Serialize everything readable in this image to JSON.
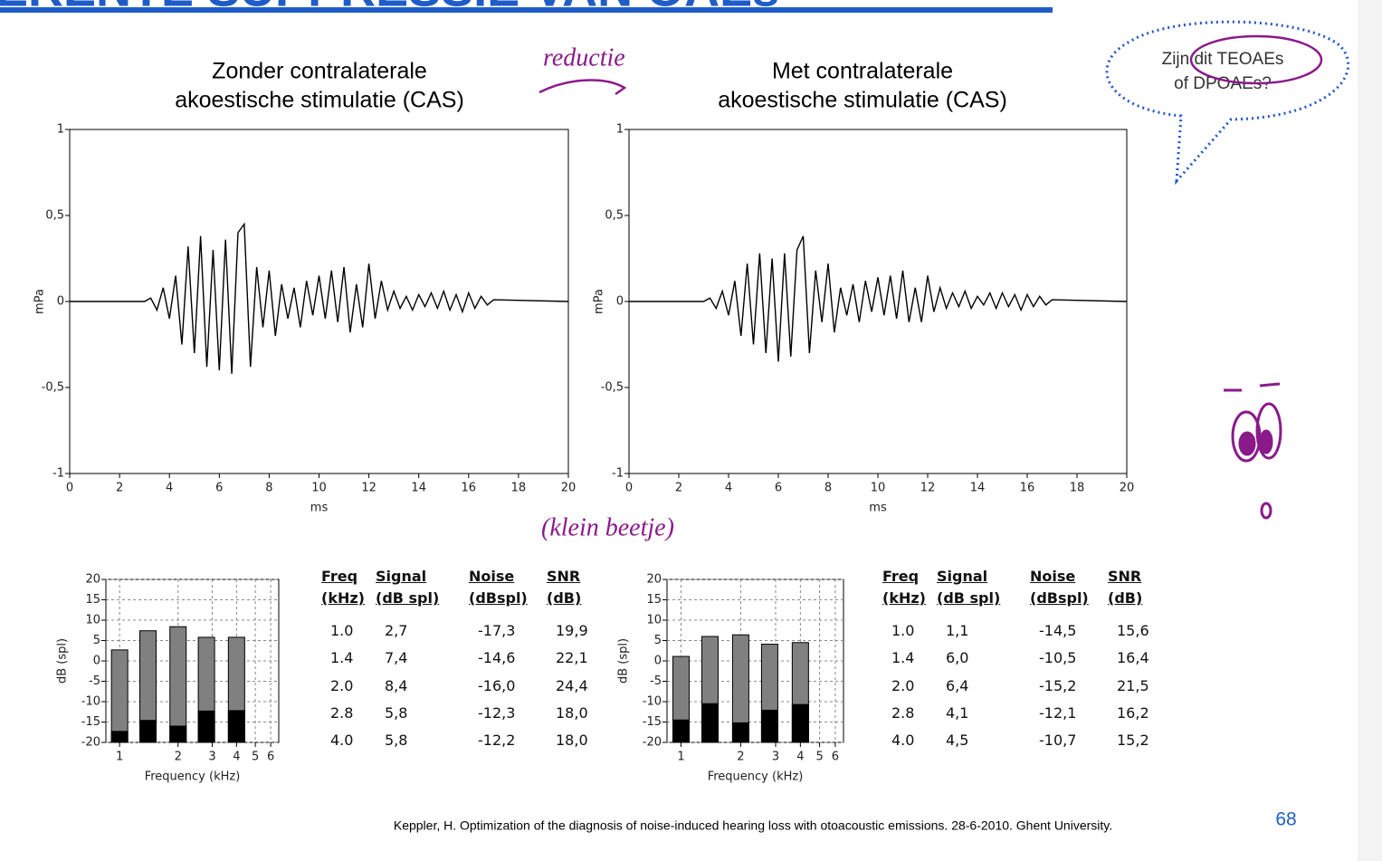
{
  "header": {
    "title": "ERENTE SUPPRESSIE VAN OAEs"
  },
  "chart_data": [
    {
      "type": "line",
      "title": [
        "Zonder contralaterale",
        "akoestische stimulatie (CAS)"
      ],
      "xlabel": "ms",
      "ylabel": "mPa",
      "x": [
        0,
        2.5,
        3,
        3.25,
        3.5,
        3.75,
        4,
        4.25,
        4.5,
        4.75,
        5,
        5.25,
        5.5,
        5.75,
        6,
        6.25,
        6.5,
        6.75,
        7,
        7.25,
        7.5,
        7.75,
        8,
        8.25,
        8.5,
        8.75,
        9,
        9.25,
        9.5,
        9.75,
        10,
        10.25,
        10.5,
        10.75,
        11,
        11.25,
        11.5,
        11.75,
        12,
        12.25,
        12.5,
        12.75,
        13,
        13.25,
        13.5,
        13.75,
        14,
        14.25,
        14.5,
        14.75,
        15,
        15.25,
        15.5,
        15.75,
        16,
        16.25,
        16.5,
        16.75,
        17,
        20
      ],
      "series": [
        {
          "color": "#000000",
          "values": [
            0,
            0,
            0,
            0.02,
            -0.05,
            0.08,
            -0.1,
            0.15,
            -0.25,
            0.32,
            -0.3,
            0.38,
            -0.38,
            0.3,
            -0.4,
            0.36,
            -0.42,
            0.4,
            0.45,
            -0.38,
            0.2,
            -0.15,
            0.18,
            -0.2,
            0.1,
            -0.1,
            0.08,
            -0.15,
            0.12,
            -0.08,
            0.15,
            -0.1,
            0.18,
            -0.12,
            0.2,
            -0.18,
            0.1,
            -0.15,
            0.22,
            -0.1,
            0.12,
            -0.05,
            0.06,
            -0.04,
            0.03,
            -0.05,
            0.04,
            -0.03,
            0.05,
            -0.04,
            0.06,
            -0.05,
            0.04,
            -0.06,
            0.05,
            -0.04,
            0.03,
            -0.02,
            0.01,
            0
          ]
        }
      ],
      "xlim": [
        0,
        20
      ],
      "xticks": [
        0,
        2,
        4,
        6,
        8,
        10,
        12,
        14,
        16,
        18,
        20
      ],
      "ylim": [
        -1,
        1
      ],
      "yticks": [
        1,
        {
          "value": 0.5,
          "label": "0,5"
        },
        0,
        {
          "value": -0.5,
          "label": "-0,5"
        },
        -1
      ]
    },
    {
      "type": "line",
      "title": [
        "Met contralaterale",
        "akoestische stimulatie (CAS)"
      ],
      "xlabel": "ms",
      "ylabel": "mPa",
      "x": [
        0,
        2.5,
        3,
        3.25,
        3.5,
        3.75,
        4,
        4.25,
        4.5,
        4.75,
        5,
        5.25,
        5.5,
        5.75,
        6,
        6.25,
        6.5,
        6.75,
        7,
        7.25,
        7.5,
        7.75,
        8,
        8.25,
        8.5,
        8.75,
        9,
        9.25,
        9.5,
        9.75,
        10,
        10.25,
        10.5,
        10.75,
        11,
        11.25,
        11.5,
        11.75,
        12,
        12.25,
        12.5,
        12.75,
        13,
        13.25,
        13.5,
        13.75,
        14,
        14.25,
        14.5,
        14.75,
        15,
        15.25,
        15.5,
        15.75,
        16,
        16.25,
        16.5,
        16.75,
        17,
        20
      ],
      "series": [
        {
          "color": "#000000",
          "values": [
            0,
            0,
            0,
            0.02,
            -0.04,
            0.06,
            -0.08,
            0.12,
            -0.2,
            0.22,
            -0.25,
            0.28,
            -0.3,
            0.25,
            -0.35,
            0.28,
            -0.32,
            0.3,
            0.38,
            -0.3,
            0.18,
            -0.12,
            0.22,
            -0.18,
            0.08,
            -0.08,
            0.1,
            -0.12,
            0.12,
            -0.06,
            0.14,
            -0.08,
            0.15,
            -0.1,
            0.18,
            -0.12,
            0.08,
            -0.12,
            0.15,
            -0.06,
            0.08,
            -0.04,
            0.05,
            -0.03,
            0.06,
            -0.04,
            0.03,
            -0.02,
            0.05,
            -0.04,
            0.05,
            -0.03,
            0.04,
            -0.05,
            0.04,
            -0.03,
            0.03,
            -0.02,
            0.01,
            0
          ]
        }
      ],
      "xlim": [
        0,
        20
      ],
      "xticks": [
        0,
        2,
        4,
        6,
        8,
        10,
        12,
        14,
        16,
        18,
        20
      ],
      "ylim": [
        -1,
        1
      ],
      "yticks": [
        1,
        {
          "value": 0.5,
          "label": "0,5"
        },
        0,
        {
          "value": -0.5,
          "label": "-0,5"
        },
        -1
      ]
    },
    {
      "type": "bar",
      "xlabel": "Frequency (kHz)",
      "ylabel": "dB (spl)",
      "xscale": "log",
      "grid": true,
      "x": [
        1.0,
        1.4,
        2.0,
        2.8,
        4.0
      ],
      "series": [
        {
          "color": "#808080",
          "values": [
            2.7,
            7.4,
            8.4,
            5.8,
            5.8
          ]
        },
        {
          "color": "#000000",
          "values": [
            -17.3,
            -14.6,
            -16.0,
            -12.3,
            -12.2
          ]
        }
      ],
      "xlim": [
        0.85,
        6.6
      ],
      "xticks": [
        1,
        2,
        3,
        4,
        5,
        6
      ],
      "ylim": [
        -20,
        20
      ],
      "yticks": [
        20,
        15,
        10,
        5,
        0,
        -5,
        -10,
        -15,
        -20
      ]
    },
    {
      "type": "bar",
      "xlabel": "Frequency (kHz)",
      "ylabel": "dB (spl)",
      "xscale": "log",
      "grid": true,
      "x": [
        1.0,
        1.4,
        2.0,
        2.8,
        4.0
      ],
      "series": [
        {
          "color": "#808080",
          "values": [
            1.1,
            6.0,
            6.4,
            4.1,
            4.5
          ]
        },
        {
          "color": "#000000",
          "values": [
            -14.5,
            -10.5,
            -15.2,
            -12.1,
            -10.7
          ]
        }
      ],
      "xlim": [
        0.85,
        6.6
      ],
      "xticks": [
        1,
        2,
        3,
        4,
        5,
        6
      ],
      "ylim": [
        -20,
        20
      ],
      "yticks": [
        20,
        15,
        10,
        5,
        0,
        -5,
        -10,
        -15,
        -20
      ]
    }
  ],
  "tables": [
    {
      "header": [
        [
          "Freq",
          "(kHz)"
        ],
        [
          "Signal",
          "(dB spl)"
        ],
        [
          "Noise",
          "(dBspl)"
        ],
        [
          "SNR",
          "(dB)"
        ]
      ],
      "rows": [
        [
          "1.0",
          "2,7",
          "-17,3",
          "19,9"
        ],
        [
          "1.4",
          "7,4",
          "-14,6",
          "22,1"
        ],
        [
          "2.0",
          "8,4",
          "-16,0",
          "24,4"
        ],
        [
          "2.8",
          "5,8",
          "-12,3",
          "18,0"
        ],
        [
          "4.0",
          "5,8",
          "-12,2",
          "18,0"
        ]
      ]
    },
    {
      "header": [
        [
          "Freq",
          "(kHz)"
        ],
        [
          "Signal",
          "(dB spl)"
        ],
        [
          "Noise",
          "(dBspl)"
        ],
        [
          "SNR",
          "(dB)"
        ]
      ],
      "rows": [
        [
          "1.0",
          "1,1",
          "-14,5",
          "15,6"
        ],
        [
          "1.4",
          "6,0",
          "-10,5",
          "16,4"
        ],
        [
          "2.0",
          "6,4",
          "-15,2",
          "21,5"
        ],
        [
          "2.8",
          "4,1",
          "-12,1",
          "16,2"
        ],
        [
          "4.0",
          "4,5",
          "-10,7",
          "15,2"
        ]
      ]
    }
  ],
  "bubble": [
    "Zijn dit TEOAEs",
    "of DPOAEs?"
  ],
  "handwriting": {
    "top": "reductie",
    "bottom": "(klein beetje)"
  },
  "footer": {
    "citation": "Keppler, H. Optimization of the diagnosis of noise-induced hearing loss with otoacoustic emissions.  28-6-2010.  Ghent University.",
    "page": "68"
  }
}
